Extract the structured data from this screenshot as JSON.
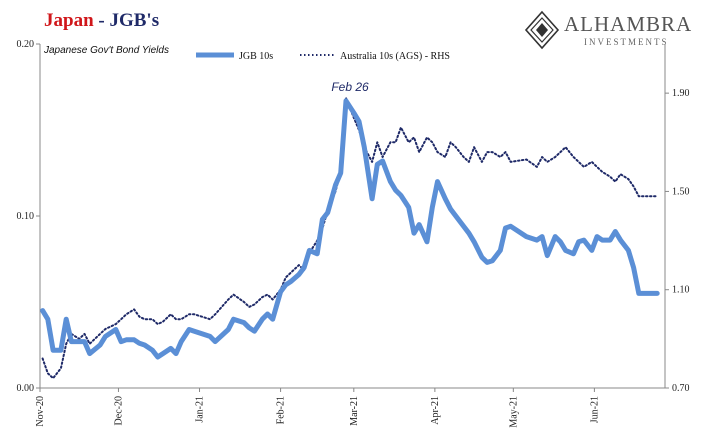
{
  "header": {
    "title_country": "Japan",
    "title_rest": " - JGB's",
    "subtitle": "Japanese Gov't Bond Yields"
  },
  "logo": {
    "name": "ALHAMBRA",
    "sub": "INVESTMENTS"
  },
  "colors": {
    "jgb": "#5b8fd6",
    "ags": "#1f2a68",
    "title_red": "#d0161a",
    "title_navy": "#1f2a68"
  },
  "chart_data": {
    "type": "line",
    "x_ticks": [
      "Nov-20",
      "Dec-20",
      "Jan-21",
      "Feb-21",
      "Mar-21",
      "Apr-21",
      "May-21",
      "Jun-21"
    ],
    "y_left": {
      "ylim": [
        0.0,
        0.2
      ],
      "ticks": [
        "0.00",
        "0.10",
        "0.20"
      ]
    },
    "y_right": {
      "ylim": [
        0.7,
        2.1
      ],
      "ticks": [
        "0.70",
        "1.10",
        "1.50",
        "1.90"
      ]
    },
    "annotation": {
      "text": "Feb 26",
      "date": "2021-02-26"
    },
    "series": [
      {
        "name": "JGB 10s",
        "axis": "left",
        "style": "solid",
        "x": [
          "2020-11-02",
          "2020-11-04",
          "2020-11-06",
          "2020-11-09",
          "2020-11-11",
          "2020-11-13",
          "2020-11-16",
          "2020-11-18",
          "2020-11-20",
          "2020-11-24",
          "2020-11-26",
          "2020-11-30",
          "2020-12-02",
          "2020-12-04",
          "2020-12-07",
          "2020-12-09",
          "2020-12-11",
          "2020-12-14",
          "2020-12-16",
          "2020-12-18",
          "2020-12-21",
          "2020-12-23",
          "2020-12-25",
          "2020-12-28",
          "2020-12-30",
          "2021-01-05",
          "2021-01-07",
          "2021-01-12",
          "2021-01-14",
          "2021-01-18",
          "2021-01-20",
          "2021-01-22",
          "2021-01-25",
          "2021-01-27",
          "2021-01-29",
          "2021-02-01",
          "2021-02-03",
          "2021-02-05",
          "2021-02-08",
          "2021-02-10",
          "2021-02-12",
          "2021-02-15",
          "2021-02-17",
          "2021-02-19",
          "2021-02-22",
          "2021-02-24",
          "2021-02-26",
          "2021-03-01",
          "2021-03-03",
          "2021-03-05",
          "2021-03-08",
          "2021-03-10",
          "2021-03-12",
          "2021-03-15",
          "2021-03-17",
          "2021-03-19",
          "2021-03-22",
          "2021-03-24",
          "2021-03-26",
          "2021-03-29",
          "2021-03-31",
          "2021-04-02",
          "2021-04-05",
          "2021-04-07",
          "2021-04-09",
          "2021-04-12",
          "2021-04-14",
          "2021-04-16",
          "2021-04-19",
          "2021-04-21",
          "2021-04-23",
          "2021-04-26",
          "2021-04-28",
          "2021-04-30",
          "2021-05-06",
          "2021-05-10",
          "2021-05-12",
          "2021-05-14",
          "2021-05-17",
          "2021-05-19",
          "2021-05-21",
          "2021-05-24",
          "2021-05-26",
          "2021-05-28",
          "2021-05-31",
          "2021-06-02",
          "2021-06-04",
          "2021-06-07",
          "2021-06-09",
          "2021-06-11",
          "2021-06-14",
          "2021-06-16",
          "2021-06-18",
          "2021-06-21",
          "2021-06-23",
          "2021-06-25"
        ],
        "values": [
          0.045,
          0.04,
          0.022,
          0.022,
          0.04,
          0.027,
          0.027,
          0.027,
          0.02,
          0.025,
          0.03,
          0.034,
          0.027,
          0.028,
          0.028,
          0.026,
          0.025,
          0.022,
          0.018,
          0.02,
          0.023,
          0.02,
          0.027,
          0.034,
          0.033,
          0.03,
          0.027,
          0.034,
          0.04,
          0.038,
          0.035,
          0.033,
          0.04,
          0.043,
          0.04,
          0.056,
          0.06,
          0.062,
          0.066,
          0.07,
          0.08,
          0.078,
          0.098,
          0.102,
          0.118,
          0.125,
          0.167,
          0.16,
          0.155,
          0.14,
          0.11,
          0.13,
          0.132,
          0.12,
          0.115,
          0.112,
          0.105,
          0.09,
          0.095,
          0.085,
          0.105,
          0.12,
          0.11,
          0.104,
          0.1,
          0.094,
          0.09,
          0.085,
          0.076,
          0.073,
          0.074,
          0.08,
          0.093,
          0.094,
          0.088,
          0.086,
          0.088,
          0.077,
          0.088,
          0.085,
          0.08,
          0.078,
          0.085,
          0.086,
          0.08,
          0.088,
          0.086,
          0.086,
          0.091,
          0.086,
          0.08,
          0.07,
          0.055,
          0.055,
          0.055,
          0.055
        ]
      },
      {
        "name": "Australia 10s (AGS) - RHS",
        "axis": "right",
        "style": "dotted",
        "x": [
          "2020-11-02",
          "2020-11-04",
          "2020-11-06",
          "2020-11-09",
          "2020-11-11",
          "2020-11-13",
          "2020-11-16",
          "2020-11-18",
          "2020-11-20",
          "2020-11-24",
          "2020-11-26",
          "2020-11-30",
          "2020-12-02",
          "2020-12-04",
          "2020-12-07",
          "2020-12-09",
          "2020-12-11",
          "2020-12-14",
          "2020-12-16",
          "2020-12-18",
          "2020-12-21",
          "2020-12-23",
          "2020-12-25",
          "2020-12-28",
          "2020-12-30",
          "2021-01-05",
          "2021-01-07",
          "2021-01-12",
          "2021-01-14",
          "2021-01-18",
          "2021-01-20",
          "2021-01-22",
          "2021-01-25",
          "2021-01-27",
          "2021-01-29",
          "2021-02-01",
          "2021-02-03",
          "2021-02-05",
          "2021-02-08",
          "2021-02-10",
          "2021-02-12",
          "2021-02-15",
          "2021-02-17",
          "2021-02-19",
          "2021-02-22",
          "2021-02-24",
          "2021-02-26",
          "2021-03-01",
          "2021-03-03",
          "2021-03-05",
          "2021-03-08",
          "2021-03-10",
          "2021-03-12",
          "2021-03-15",
          "2021-03-17",
          "2021-03-19",
          "2021-03-22",
          "2021-03-24",
          "2021-03-26",
          "2021-03-29",
          "2021-03-31",
          "2021-04-02",
          "2021-04-05",
          "2021-04-07",
          "2021-04-09",
          "2021-04-12",
          "2021-04-14",
          "2021-04-16",
          "2021-04-19",
          "2021-04-21",
          "2021-04-23",
          "2021-04-26",
          "2021-04-28",
          "2021-04-30",
          "2021-05-06",
          "2021-05-10",
          "2021-05-12",
          "2021-05-14",
          "2021-05-17",
          "2021-05-19",
          "2021-05-21",
          "2021-05-24",
          "2021-05-26",
          "2021-05-28",
          "2021-05-31",
          "2021-06-02",
          "2021-06-04",
          "2021-06-07",
          "2021-06-09",
          "2021-06-11",
          "2021-06-14",
          "2021-06-16",
          "2021-06-18",
          "2021-06-21",
          "2021-06-23",
          "2021-06-25"
        ],
        "values": [
          0.82,
          0.76,
          0.74,
          0.78,
          0.88,
          0.92,
          0.9,
          0.92,
          0.88,
          0.92,
          0.94,
          0.96,
          0.98,
          1.0,
          1.02,
          0.99,
          0.98,
          0.98,
          0.96,
          0.97,
          1.0,
          0.98,
          0.98,
          1.0,
          1.0,
          0.98,
          1.0,
          1.06,
          1.08,
          1.05,
          1.03,
          1.04,
          1.07,
          1.08,
          1.06,
          1.1,
          1.15,
          1.17,
          1.2,
          1.18,
          1.25,
          1.3,
          1.35,
          1.42,
          1.5,
          1.58,
          1.88,
          1.8,
          1.75,
          1.68,
          1.62,
          1.7,
          1.64,
          1.7,
          1.7,
          1.76,
          1.7,
          1.72,
          1.66,
          1.72,
          1.7,
          1.66,
          1.64,
          1.7,
          1.68,
          1.64,
          1.62,
          1.68,
          1.62,
          1.66,
          1.66,
          1.64,
          1.66,
          1.62,
          1.63,
          1.6,
          1.64,
          1.62,
          1.64,
          1.66,
          1.68,
          1.64,
          1.62,
          1.6,
          1.62,
          1.6,
          1.58,
          1.56,
          1.54,
          1.57,
          1.55,
          1.52,
          1.48,
          1.48,
          1.48,
          1.48
        ]
      }
    ]
  }
}
